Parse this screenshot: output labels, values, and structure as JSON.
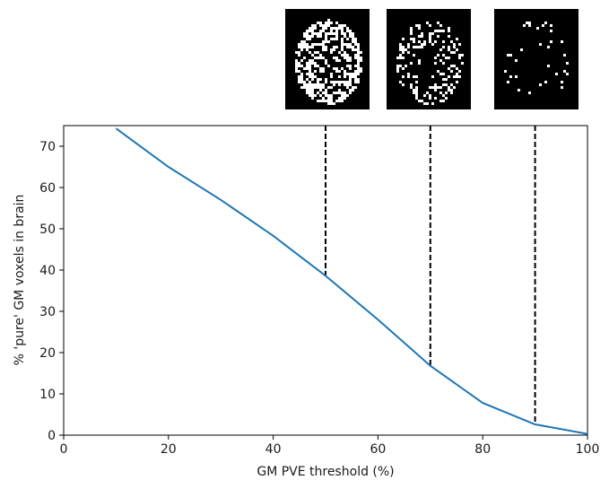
{
  "chart_data": {
    "type": "line",
    "title": "",
    "xlabel": "GM PVE threshold (%)",
    "ylabel": "% 'pure' GM voxels in brain",
    "xlim": [
      0,
      100
    ],
    "ylim": [
      0,
      75
    ],
    "xticks": [
      0,
      20,
      40,
      60,
      80,
      100
    ],
    "yticks": [
      0,
      10,
      20,
      30,
      40,
      50,
      60,
      70
    ],
    "grid": false,
    "series": [
      {
        "color": "#1f77b4",
        "x": [
          10,
          20,
          30,
          40,
          50,
          60,
          70,
          80,
          90,
          100
        ],
        "y": [
          74.3,
          65.0,
          57.0,
          48.3,
          38.6,
          28.0,
          16.8,
          7.8,
          2.6,
          0.3
        ]
      }
    ],
    "vlines": [
      {
        "x": 50,
        "y_top": 38.6,
        "style": "dashed",
        "color": "#000000"
      },
      {
        "x": 70,
        "y_top": 16.8,
        "style": "dashed",
        "color": "#000000"
      },
      {
        "x": 90,
        "y_top": 2.6,
        "style": "dashed",
        "color": "#000000"
      }
    ]
  },
  "thumbnails": [
    {
      "name": "brain-mask-threshold-50",
      "density": 0.55,
      "color": "#ffffff",
      "background": "#000000"
    },
    {
      "name": "brain-mask-threshold-70",
      "density": 0.25,
      "color": "#ffffff",
      "background": "#000000"
    },
    {
      "name": "brain-mask-threshold-90",
      "density": 0.04,
      "color": "#ffffff",
      "background": "#000000"
    }
  ]
}
